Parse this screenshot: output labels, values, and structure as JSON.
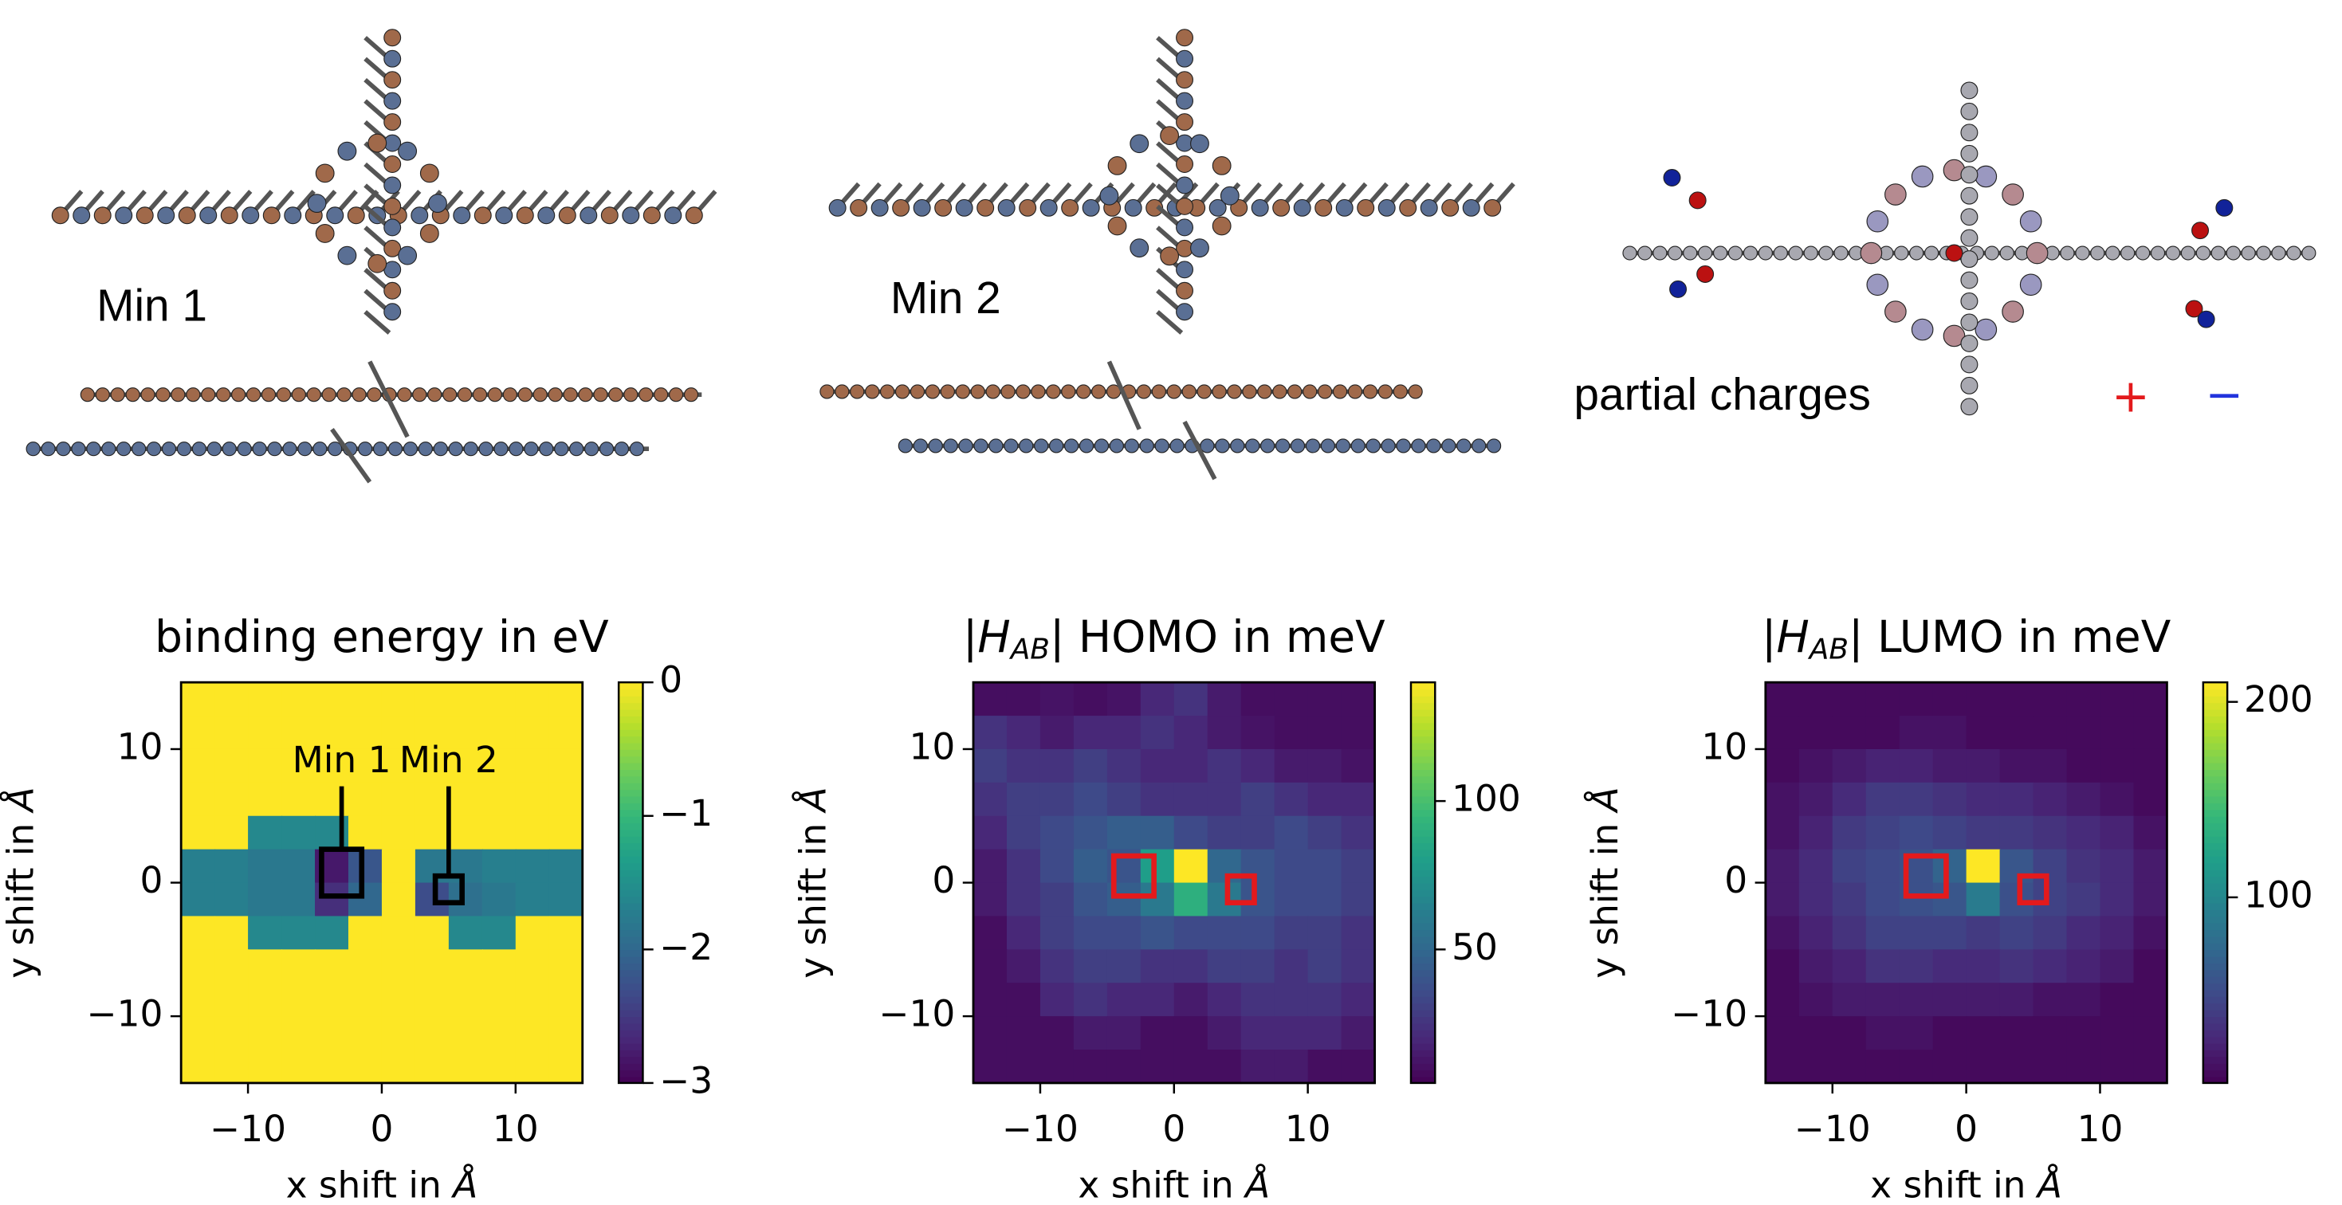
{
  "figure": {
    "labels": [
      "Min 1",
      "Min 2"
    ],
    "partial_charges": "partial charges",
    "plus": "+",
    "minus": "−"
  },
  "chart_data": [
    {
      "type": "heatmap",
      "title": [
        "binding energy in eV"
      ],
      "xlabel": [
        "x shift in ",
        "Å"
      ],
      "ylabel": [
        "y shift in ",
        "Å"
      ],
      "colormap": "viridis",
      "xlim": [
        -15,
        15
      ],
      "ylim": [
        -15,
        15
      ],
      "xticks": [
        {
          "value": -10,
          "label": "−10"
        },
        0,
        10
      ],
      "yticks": [
        {
          "value": -10,
          "label": "−10"
        },
        0,
        10
      ],
      "zlim": [
        -3,
        0
      ],
      "zticks": [
        0,
        {
          "value": -1,
          "label": "−1"
        },
        {
          "value": -2,
          "label": "−2"
        },
        {
          "value": -3,
          "label": "−3"
        }
      ],
      "z": [
        [
          0,
          0,
          0,
          0,
          0,
          0,
          0,
          0,
          0,
          0,
          0,
          0
        ],
        [
          0,
          0,
          0,
          0,
          0,
          0,
          0,
          0,
          0,
          0,
          0,
          0
        ],
        [
          0,
          0,
          0,
          0,
          0,
          0,
          0,
          0,
          0,
          0,
          0,
          0
        ],
        [
          0,
          0,
          0,
          0,
          0,
          0,
          0,
          0,
          0,
          0,
          0,
          0
        ],
        [
          0,
          0,
          -1.6,
          -1.6,
          -1.6,
          0,
          0,
          0,
          0,
          0,
          0,
          0
        ],
        [
          -1.7,
          -1.7,
          -1.8,
          -1.8,
          -2.8,
          -2.2,
          0,
          -1.8,
          -1.8,
          -1.7,
          -1.7,
          -1.7
        ],
        [
          -1.7,
          -1.7,
          -1.8,
          -1.8,
          -2.6,
          -2.0,
          0,
          -2.3,
          -1.9,
          -1.8,
          -1.7,
          -1.7
        ],
        [
          0,
          0,
          -1.6,
          -1.6,
          -1.6,
          0,
          0,
          0,
          -1.6,
          -1.6,
          0,
          0
        ],
        [
          0,
          0,
          0,
          0,
          0,
          0,
          0,
          0,
          0,
          0,
          0,
          0
        ],
        [
          0,
          0,
          0,
          0,
          0,
          0,
          0,
          0,
          0,
          0,
          0,
          0
        ],
        [
          0,
          0,
          0,
          0,
          0,
          0,
          0,
          0,
          0,
          0,
          0,
          0
        ],
        [
          0,
          0,
          0,
          0,
          0,
          0,
          0,
          0,
          0,
          0,
          0,
          0
        ]
      ],
      "box_color": "#000000",
      "boxes": [
        {
          "label": "Min 1",
          "x": [
            -4.5,
            -1.5
          ],
          "y": [
            -1,
            2.5
          ]
        },
        {
          "label": "Min 2",
          "x": [
            4,
            6
          ],
          "y": [
            -1.5,
            0.5
          ]
        }
      ]
    },
    {
      "type": "heatmap",
      "title": [
        "|",
        "H",
        "AB",
        "| HOMO in meV"
      ],
      "xlabel": [
        "x shift in ",
        "Å"
      ],
      "ylabel": [
        "y shift in ",
        "Å"
      ],
      "colormap": "viridis",
      "xlim": [
        -15,
        15
      ],
      "ylim": [
        -15,
        15
      ],
      "xticks": [
        {
          "value": -10,
          "label": "−10"
        },
        0,
        10
      ],
      "yticks": [
        {
          "value": -10,
          "label": "−10"
        },
        0,
        10
      ],
      "zlim": [
        5,
        140
      ],
      "zticks": [
        50,
        100
      ],
      "z": [
        [
          10,
          10,
          12,
          10,
          12,
          20,
          25,
          15,
          10,
          10,
          10,
          10
        ],
        [
          25,
          20,
          15,
          20,
          20,
          25,
          20,
          15,
          12,
          10,
          10,
          10
        ],
        [
          30,
          25,
          25,
          30,
          25,
          20,
          20,
          25,
          20,
          15,
          15,
          12
        ],
        [
          25,
          30,
          30,
          35,
          30,
          25,
          25,
          25,
          30,
          25,
          20,
          20
        ],
        [
          20,
          30,
          35,
          40,
          45,
          45,
          35,
          30,
          30,
          35,
          30,
          25
        ],
        [
          15,
          25,
          35,
          45,
          40,
          80,
          140,
          50,
          40,
          35,
          35,
          30
        ],
        [
          15,
          25,
          30,
          40,
          45,
          60,
          90,
          60,
          40,
          35,
          35,
          30
        ],
        [
          10,
          20,
          30,
          35,
          35,
          40,
          35,
          35,
          35,
          30,
          30,
          25
        ],
        [
          10,
          15,
          25,
          30,
          30,
          25,
          25,
          30,
          30,
          25,
          30,
          25
        ],
        [
          10,
          10,
          20,
          25,
          20,
          20,
          15,
          20,
          25,
          25,
          25,
          20
        ],
        [
          10,
          10,
          10,
          15,
          15,
          10,
          10,
          15,
          20,
          20,
          20,
          15
        ],
        [
          10,
          10,
          10,
          10,
          10,
          10,
          10,
          10,
          15,
          15,
          10,
          10
        ]
      ],
      "box_color": "#e31a1c",
      "boxes": [
        {
          "x": [
            -4.5,
            -1.5
          ],
          "y": [
            -1,
            2
          ]
        },
        {
          "x": [
            4,
            6
          ],
          "y": [
            -1.5,
            0.5
          ]
        }
      ]
    },
    {
      "type": "heatmap",
      "title": [
        "|",
        "H",
        "AB",
        "| LUMO in meV"
      ],
      "xlabel": [
        "x shift in ",
        "Å"
      ],
      "ylabel": [
        "y shift in ",
        "Å"
      ],
      "colormap": "viridis",
      "xlim": [
        -15,
        15
      ],
      "ylim": [
        -15,
        15
      ],
      "xticks": [
        {
          "value": -10,
          "label": "−10"
        },
        0,
        10
      ],
      "yticks": [
        {
          "value": -10,
          "label": "−10"
        },
        0,
        10
      ],
      "zlim": [
        5,
        210
      ],
      "zticks": [
        100,
        200
      ],
      "z": [
        [
          10,
          10,
          10,
          10,
          10,
          10,
          10,
          10,
          10,
          10,
          10,
          10
        ],
        [
          10,
          10,
          10,
          10,
          15,
          15,
          10,
          10,
          10,
          10,
          10,
          10
        ],
        [
          10,
          15,
          20,
          25,
          25,
          20,
          20,
          15,
          15,
          10,
          10,
          10
        ],
        [
          15,
          20,
          30,
          40,
          40,
          35,
          30,
          30,
          25,
          20,
          15,
          10
        ],
        [
          15,
          25,
          40,
          45,
          50,
          45,
          40,
          40,
          35,
          30,
          25,
          15
        ],
        [
          20,
          30,
          45,
          50,
          55,
          70,
          210,
          60,
          45,
          35,
          30,
          20
        ],
        [
          20,
          30,
          40,
          50,
          55,
          60,
          90,
          55,
          45,
          40,
          30,
          20
        ],
        [
          15,
          25,
          35,
          45,
          45,
          45,
          40,
          45,
          40,
          30,
          25,
          15
        ],
        [
          10,
          20,
          25,
          35,
          35,
          30,
          30,
          35,
          30,
          25,
          20,
          10
        ],
        [
          10,
          15,
          20,
          20,
          20,
          20,
          20,
          20,
          15,
          15,
          10,
          10
        ],
        [
          10,
          10,
          10,
          15,
          15,
          10,
          10,
          10,
          10,
          10,
          10,
          10
        ],
        [
          10,
          10,
          10,
          10,
          10,
          10,
          10,
          10,
          10,
          10,
          10,
          10
        ]
      ],
      "box_color": "#e31a1c",
      "boxes": [
        {
          "x": [
            -4.5,
            -1.5
          ],
          "y": [
            -1,
            2
          ]
        },
        {
          "x": [
            4,
            6
          ],
          "y": [
            -1.5,
            0.5
          ]
        }
      ]
    }
  ]
}
